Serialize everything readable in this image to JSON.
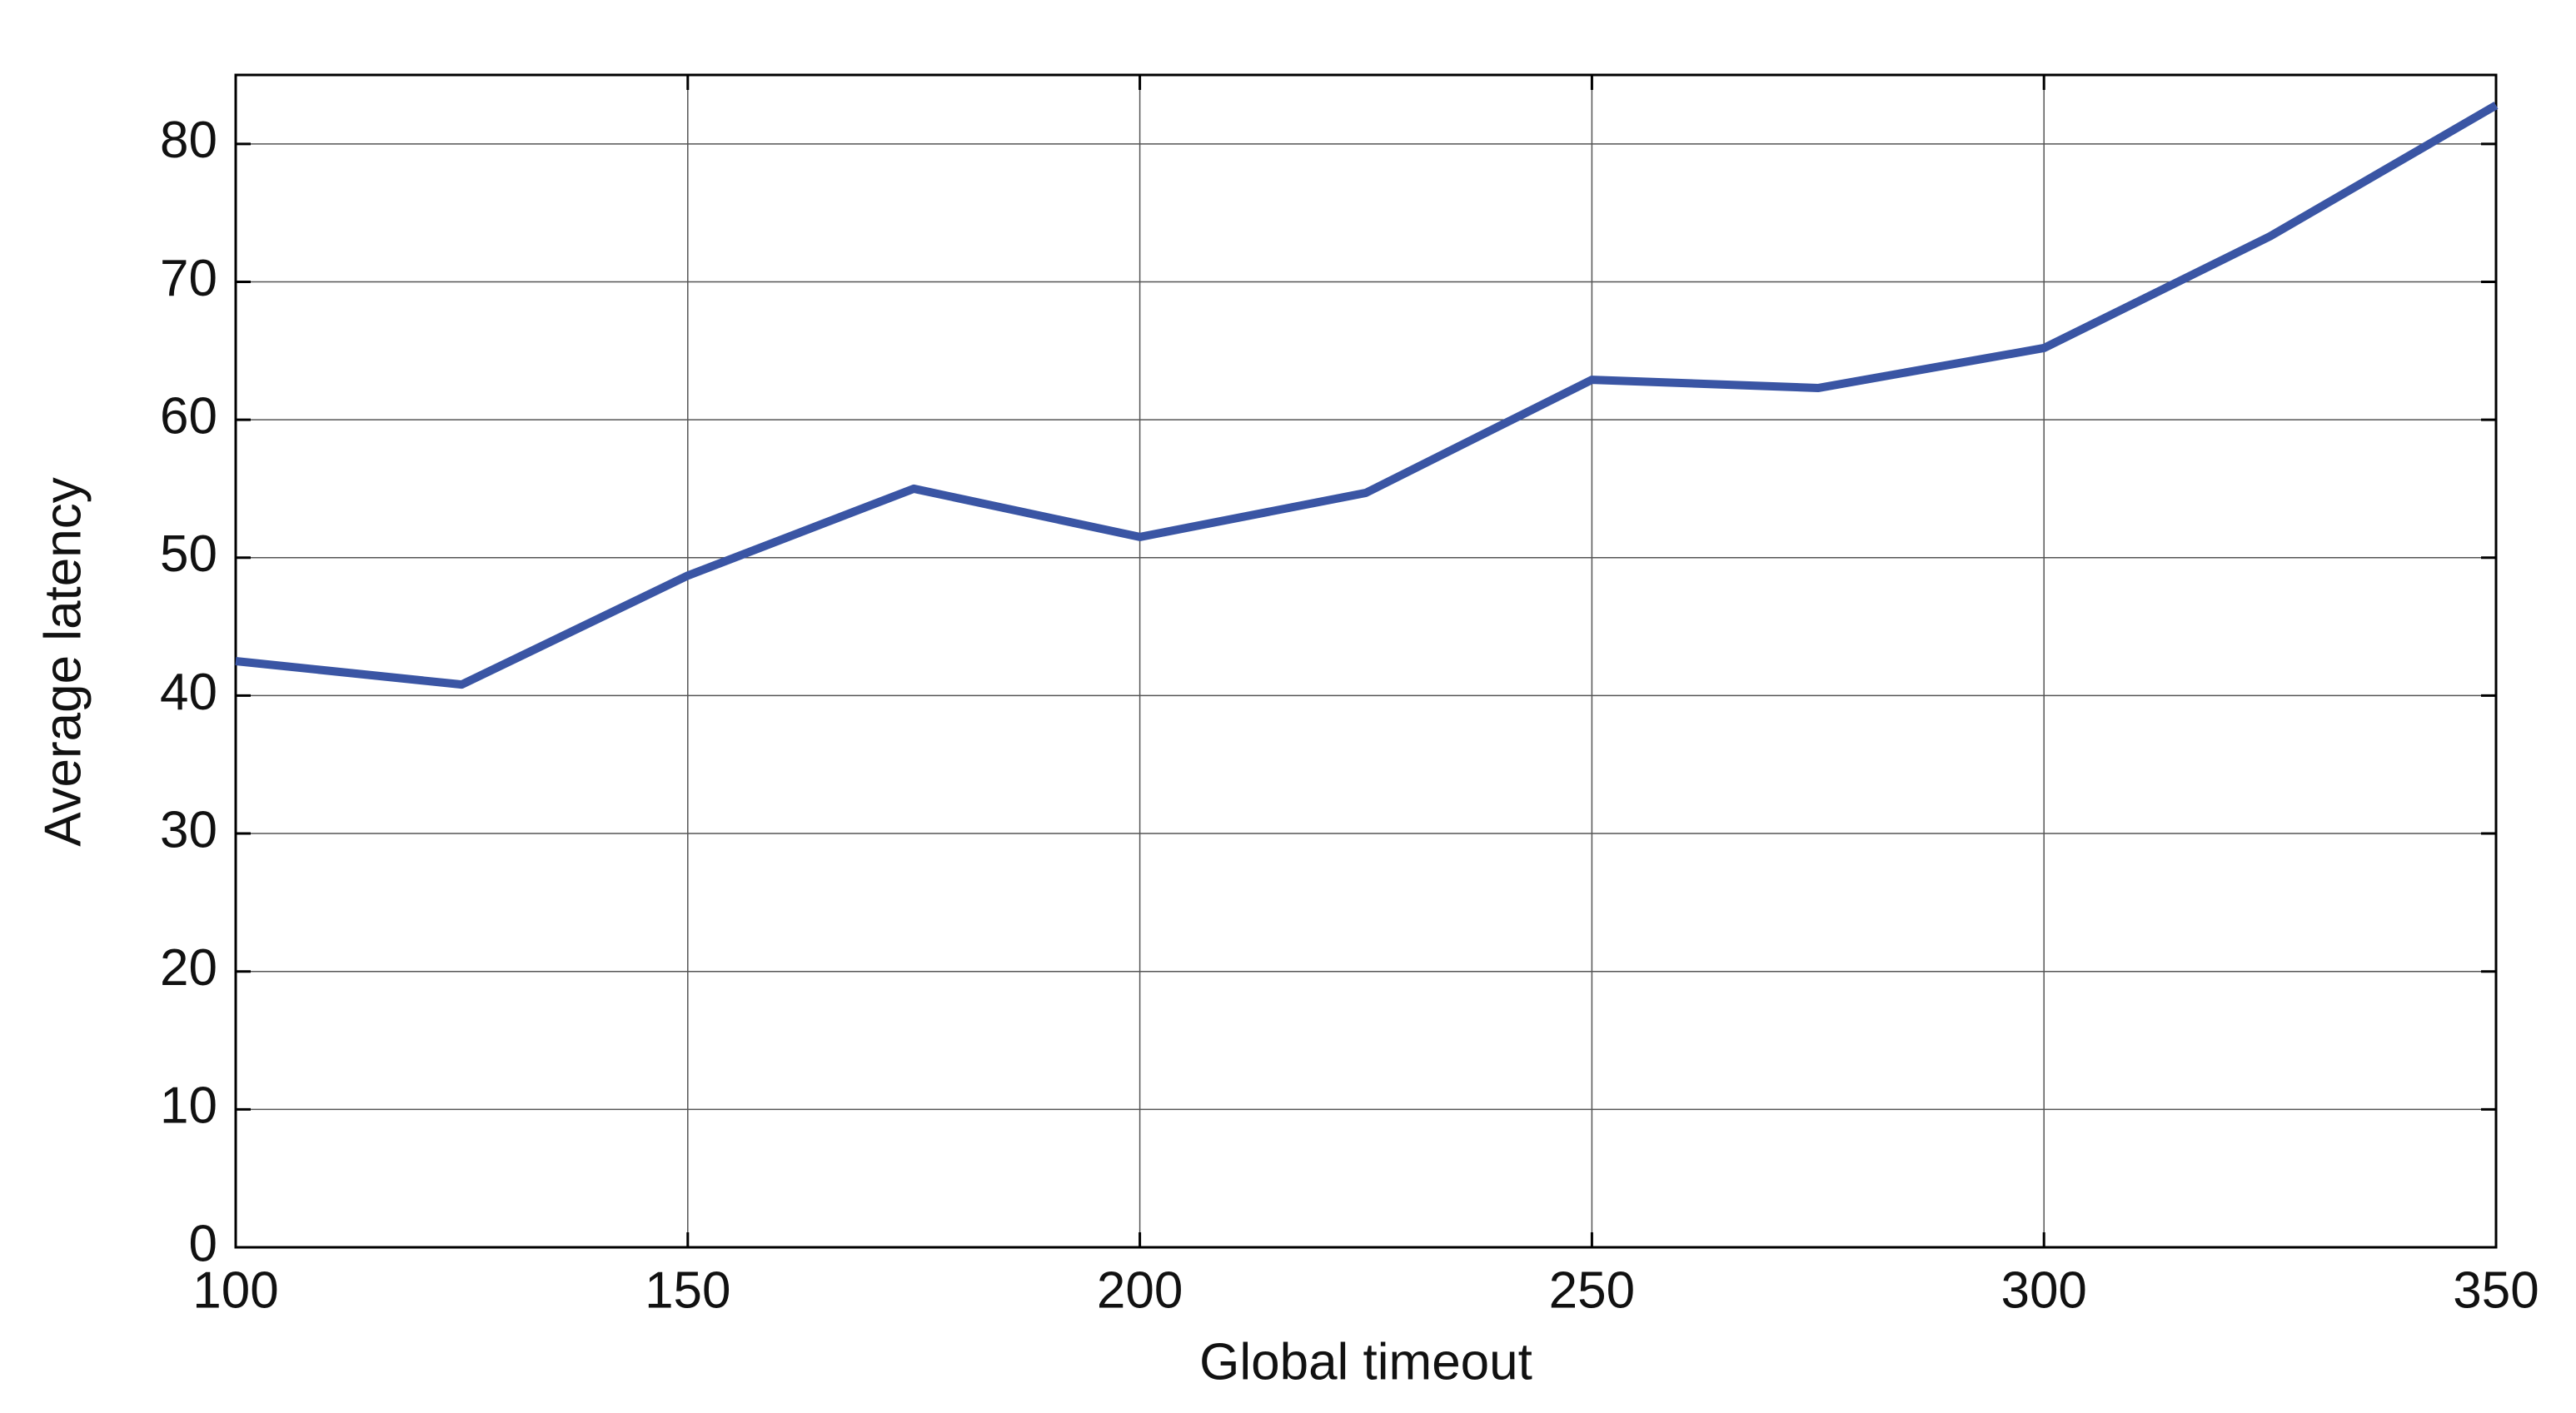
{
  "chart_data": {
    "type": "line",
    "x_label": "Global timeout",
    "y_label": "Average latency",
    "x": [
      100,
      125,
      150,
      175,
      200,
      225,
      250,
      275,
      300,
      325,
      350
    ],
    "series": [
      {
        "color": "#3a55a4",
        "values": [
          42.5,
          40.8,
          48.7,
          55,
          51.5,
          54.7,
          62.9,
          62.3,
          65.2,
          73.3,
          82.8
        ]
      }
    ],
    "xlim": [
      100,
      350
    ],
    "xticks": [
      100,
      150,
      200,
      250,
      300,
      350
    ],
    "ylim": [
      0,
      85
    ],
    "yticks": [
      0,
      10,
      20,
      30,
      40,
      50,
      60,
      70,
      80
    ],
    "grid": true
  }
}
